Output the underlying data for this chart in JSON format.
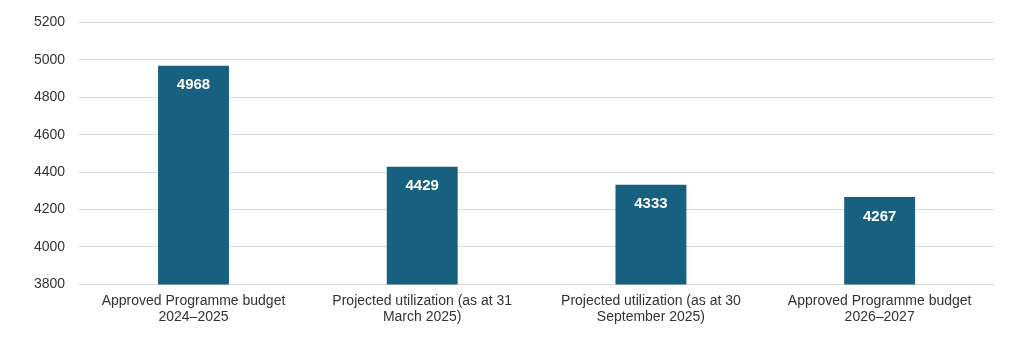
{
  "chart_data": {
    "type": "bar",
    "categories": [
      "Approved Programme budget 2024–2025",
      "Projected utilization (as at 31 March 2025)",
      "Projected utilization (as at 30 September 2025)",
      "Approved Programme budget 2026–2027"
    ],
    "values": [
      4968,
      4429,
      4333,
      4267
    ],
    "color": "#17607f",
    "ylim": [
      3800,
      5200
    ],
    "yticks": [
      3800,
      4000,
      4200,
      4400,
      4600,
      4800,
      5000,
      5200
    ],
    "grid": "y",
    "legend": false,
    "data_labels": true
  }
}
